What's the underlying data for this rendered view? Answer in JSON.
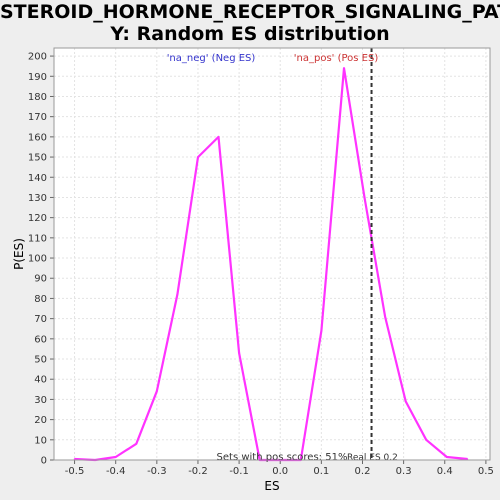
{
  "chart_data": {
    "type": "line",
    "title_line1": "STEROID_HORMONE_RECEPTOR_SIGNALING_PATHWA",
    "title_line2": "Y: Random ES distribution",
    "xlabel": "ES",
    "ylabel": "P(ES)",
    "xlim": [
      -0.55,
      0.51
    ],
    "ylim": [
      0,
      204
    ],
    "x_ticks": [
      -0.5,
      -0.4,
      -0.3,
      -0.2,
      -0.1,
      0.0,
      0.1,
      0.2,
      0.3,
      0.4,
      0.5
    ],
    "x_tick_labels": [
      "-0.5",
      "-0.4",
      "-0.3",
      "-0.2",
      "-0.1",
      "0.0",
      "0.1",
      "0.2",
      "0.3",
      "0.4",
      "0.5"
    ],
    "y_ticks": [
      0,
      10,
      20,
      30,
      40,
      50,
      60,
      70,
      80,
      90,
      100,
      110,
      120,
      130,
      140,
      150,
      160,
      170,
      180,
      190,
      200
    ],
    "grid": true,
    "series": [
      {
        "color": "#ff33ff",
        "x": [
          -0.5,
          -0.45,
          -0.4,
          -0.35,
          -0.3,
          -0.25,
          -0.2,
          -0.15,
          -0.1,
          -0.05,
          0.0,
          0.05,
          0.1,
          0.155,
          0.205,
          0.255,
          0.305,
          0.355,
          0.405,
          0.455
        ],
        "y": [
          0.5,
          0,
          1.5,
          8,
          34,
          82,
          150,
          160,
          53,
          0,
          0,
          0,
          64,
          194,
          130,
          71,
          29,
          10,
          1.5,
          0.5
        ]
      }
    ],
    "real_es": 0.222,
    "real_es_label": "Real ES 0.2",
    "annotations": {
      "neg_label": "'na_neg' (Neg ES)",
      "neg_color": "#3333cc",
      "pos_label": "'na_pos' (Pos ES)",
      "pos_color": "#cc3333",
      "pos_scores_label": "Sets with pos scores: 51%"
    }
  }
}
